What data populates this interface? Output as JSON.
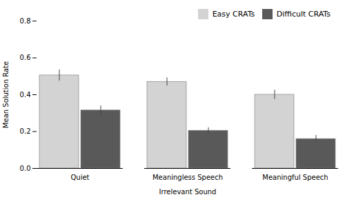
{
  "chart_data": {
    "type": "bar",
    "categories": [
      "Quiet",
      "Meaningless Speech",
      "Meaningful Speech"
    ],
    "series": [
      {
        "name": "Easy CRATs",
        "color": "#d3d3d3",
        "values": [
          0.505,
          0.47,
          0.4
        ],
        "errors": [
          0.03,
          0.022,
          0.025
        ]
      },
      {
        "name": "Difficult CRATs",
        "color": "#595959",
        "values": [
          0.315,
          0.205,
          0.16
        ],
        "errors": [
          0.025,
          0.016,
          0.02
        ]
      }
    ],
    "xlabel": "Irrelevant Sound",
    "ylabel": "Mean Solution Rate",
    "ylim": [
      0,
      0.8
    ],
    "yticks": [
      {
        "value": 0,
        "label": "0.0"
      },
      0.2,
      0.4,
      0.6,
      0.8
    ],
    "grid": false,
    "legend": "upper right"
  }
}
